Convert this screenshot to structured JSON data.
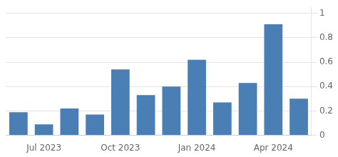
{
  "chart_data": {
    "type": "bar",
    "categories": [
      null,
      "Jul 2023",
      null,
      null,
      "Oct 2023",
      null,
      null,
      "Jan 2024",
      null,
      null,
      "Apr 2024",
      null
    ],
    "values": [
      0.19,
      0.09,
      0.22,
      0.17,
      0.54,
      0.33,
      0.4,
      0.62,
      0.27,
      0.43,
      0.91,
      0.3
    ],
    "color": "#4a7fb5",
    "ylim": [
      0,
      1.05
    ],
    "yticks": [
      0,
      0.2,
      0.4,
      0.6,
      0.8,
      1
    ],
    "grid": true
  }
}
